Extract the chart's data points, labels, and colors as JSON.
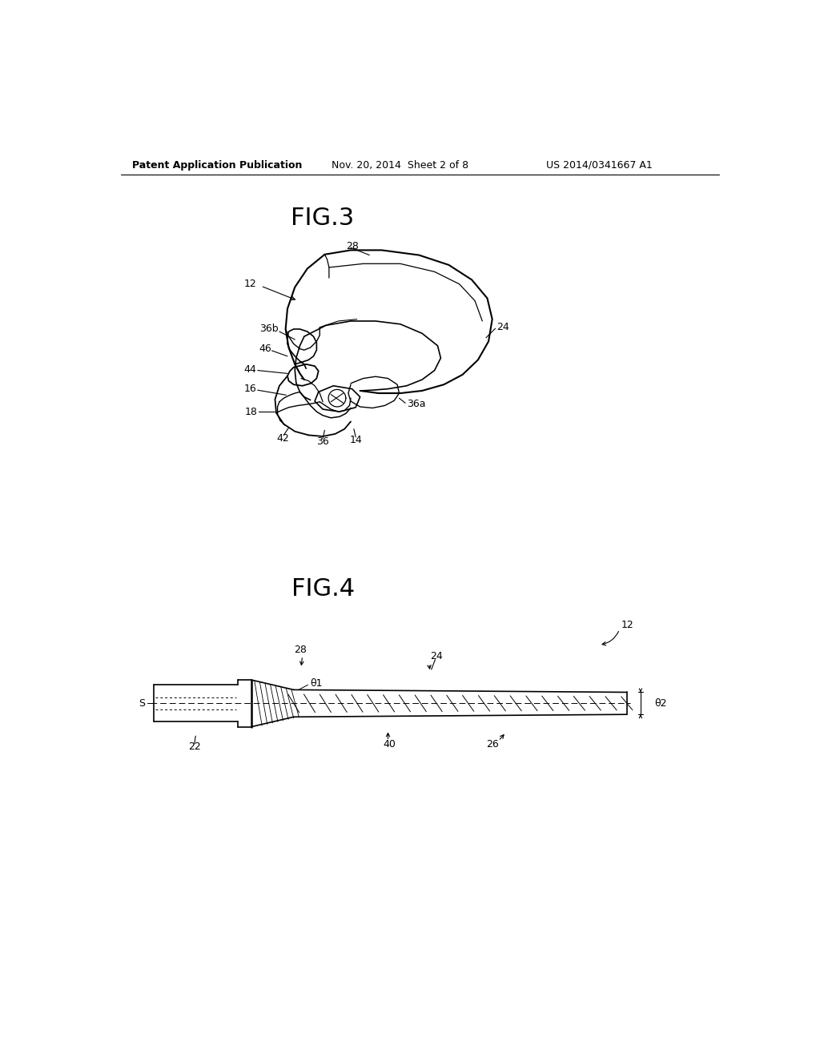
{
  "background_color": "#ffffff",
  "header_left": "Patent Application Publication",
  "header_center": "Nov. 20, 2014  Sheet 2 of 8",
  "header_right": "US 2014/0341667 A1",
  "fig3_title": "FIG.3",
  "fig4_title": "FIG.4",
  "text_color": "#000000",
  "line_color": "#000000"
}
